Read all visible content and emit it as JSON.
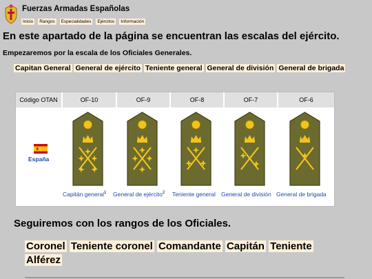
{
  "site": {
    "title": "Fuerzas Armadas Españolas"
  },
  "nav": [
    "Inicio",
    "Rangos",
    "Especialidades",
    "Ejércitos",
    "Información"
  ],
  "heading": "En este apartado de la página se encuentran las escalas del ejército.",
  "subheading": "Empezaremos por la escala de los Oficiales Generales.",
  "general_ranks": [
    "Capitan General",
    "General de ejército",
    "Teniente general",
    "General de división",
    "General de brigada"
  ],
  "table": {
    "code_header": "Código OTAN",
    "codes": [
      "OF-10",
      "OF-9",
      "OF-8",
      "OF-7",
      "OF-6"
    ],
    "country": "España",
    "rank_names": [
      "Capitán general",
      "General de ejército",
      "Teniente general",
      "General de división",
      "General de brigada"
    ],
    "footnotes": [
      "1",
      "2",
      "",
      "",
      ""
    ],
    "insignia_colors": {
      "board": "#6b6b2f",
      "border": "#3f3f1a",
      "gold": "#f2c41a"
    }
  },
  "officers_heading": "Seguiremos con los rangos de los Oficiales.",
  "officer_ranks": [
    "Coronel",
    "Teniente coronel",
    "Comandante",
    "Capitán",
    "Teniente",
    "Alférez"
  ]
}
